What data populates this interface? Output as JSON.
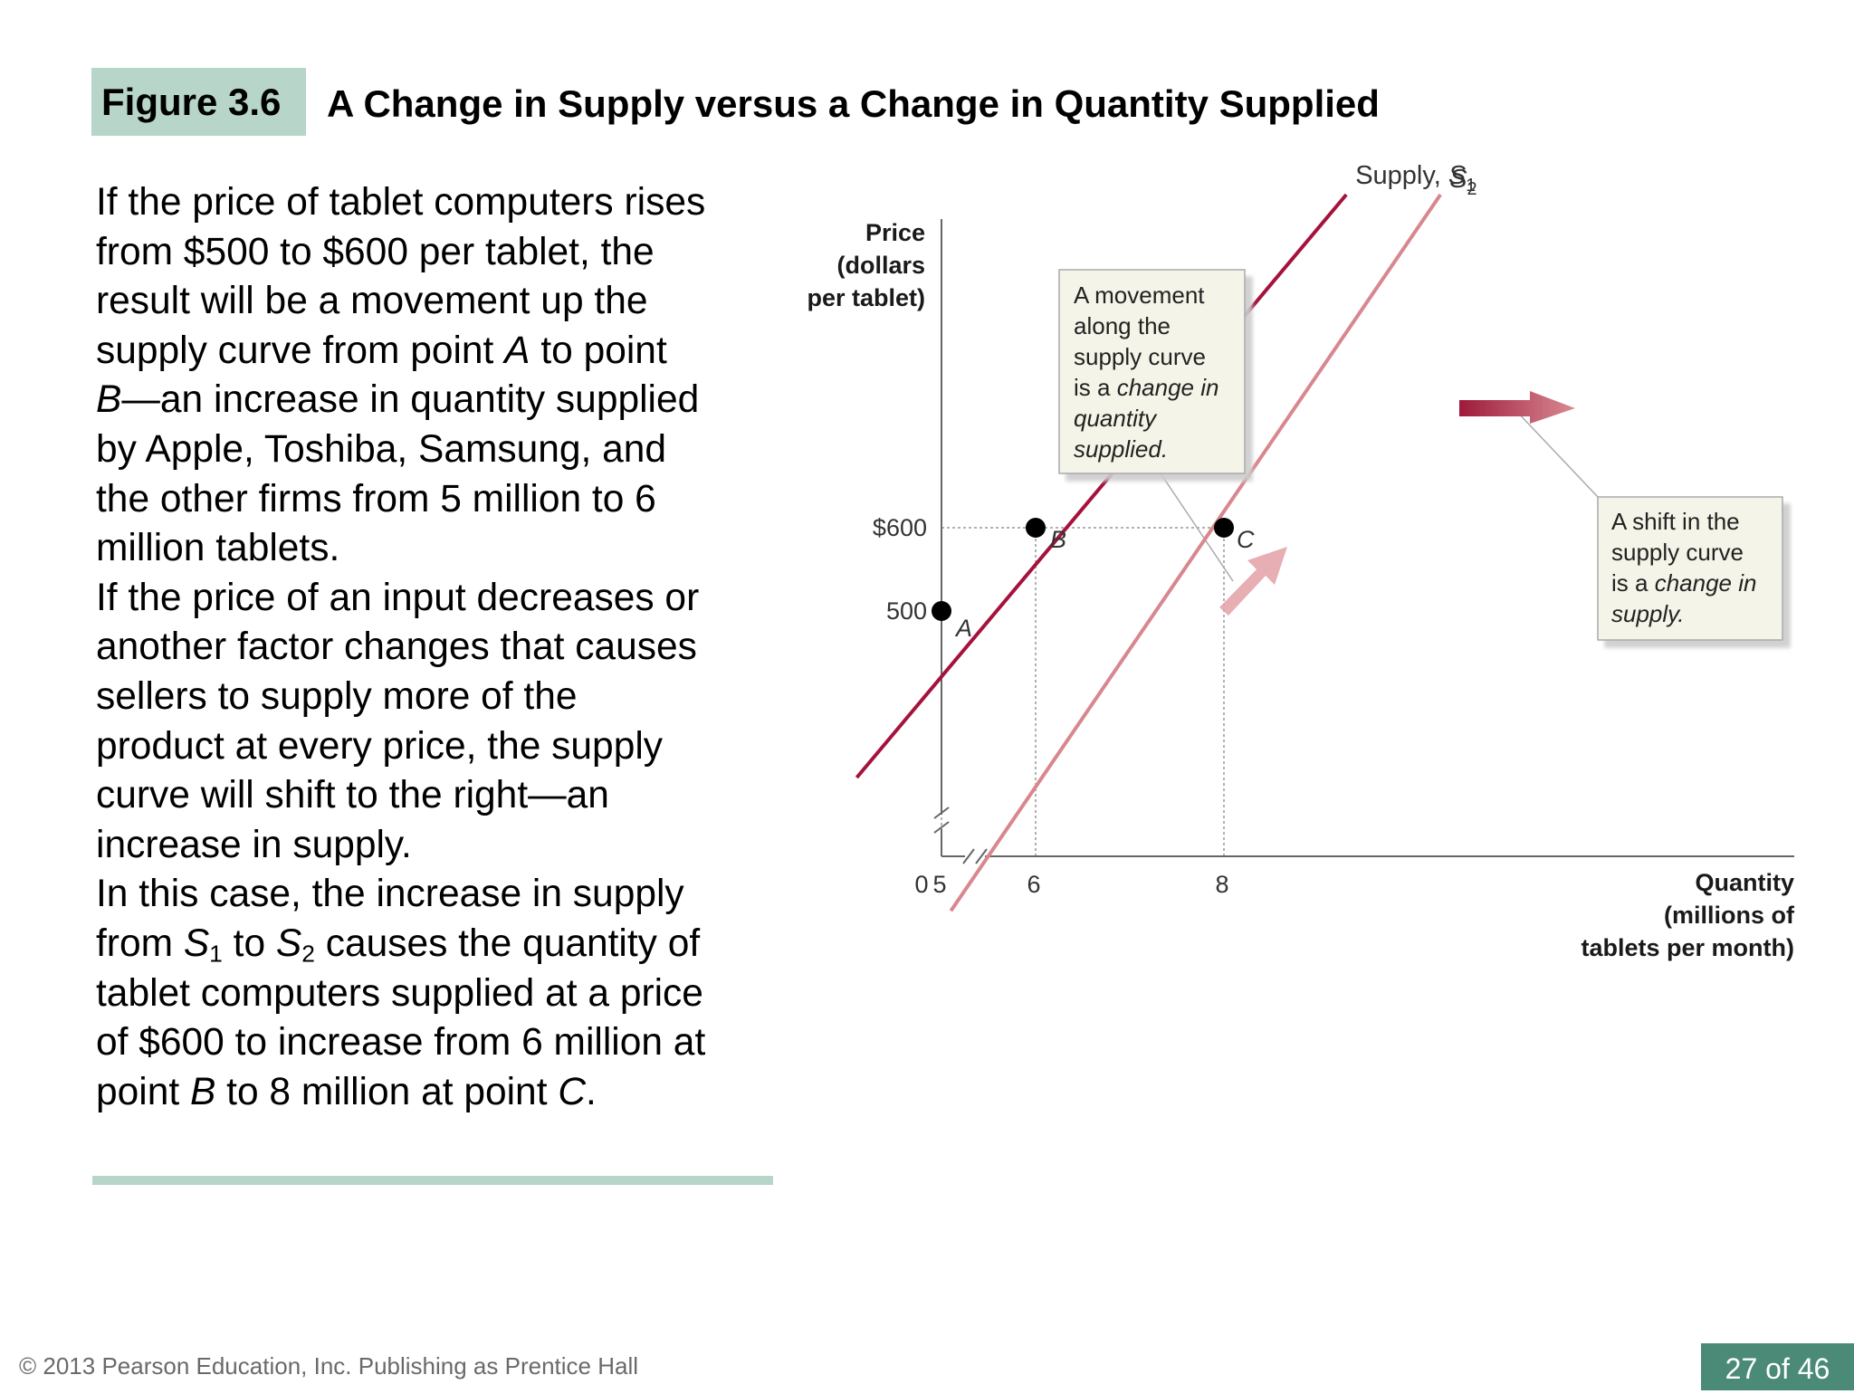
{
  "figure": {
    "label": "Figure 3.6",
    "title": "A Change in Supply versus a Change in Quantity Supplied"
  },
  "body": {
    "lines": [
      "If the price of tablet computers rises",
      "from $500 to $600 per tablet, the",
      "result will be a movement up the",
      "supply curve from point <i>A</i> to point",
      "<i>B</i>—an increase in quantity supplied",
      "by Apple, Toshiba, Samsung, and",
      "the other firms from 5 million to 6",
      "million tablets.",
      "If the price of an input decreases or",
      "another factor changes that causes",
      "sellers to supply more of the",
      "product at every price, the supply",
      "curve will shift to the right—an",
      "increase in supply.",
      "In this case, the increase in supply",
      "from <i>S</i><sub>1</sub> to <i>S</i><sub>2</sub> causes the quantity of",
      "tablet computers supplied at a price",
      "of $600 to increase from 6 million at",
      "point <i>B</i> to 8 million at point <i>C</i>."
    ]
  },
  "footer": {
    "copyright": "© 2013 Pearson Education, Inc. Publishing as Prentice Hall",
    "page": "27 of 46"
  },
  "colors": {
    "badge": "#b7d5c8",
    "page_badge": "#4a8a77",
    "s1": "#a5123c",
    "s2": "#d8878f",
    "callout_bg": "#f5f4e8",
    "callout_border": "#aaaaaa"
  },
  "chart_data": {
    "type": "line",
    "title": "",
    "ylabel": [
      "Price",
      "(dollars",
      "per tablet)"
    ],
    "xlabel": [
      "Quantity",
      "(millions of",
      "tablets per month)"
    ],
    "axis_break": true,
    "xlim": [
      0,
      9.6
    ],
    "ylim": [
      0,
      900
    ],
    "x_ticks": [
      0,
      5,
      6,
      8
    ],
    "x_tick_labels": [
      "0",
      "5",
      "6",
      "8"
    ],
    "y_ticks": [
      500,
      600
    ],
    "y_tick_labels": [
      "500",
      "$600"
    ],
    "series": [
      {
        "name": "Supply, S1",
        "label_main": "Supply, ",
        "label_var": "S",
        "label_sub": "1",
        "x": [
          4.1,
          9.3
        ],
        "y": [
          300,
          1000
        ]
      },
      {
        "name": "S2",
        "label_main": "",
        "label_var": "S",
        "label_sub": "2",
        "x": [
          5.1,
          10.3
        ],
        "y": [
          140,
          1000
        ]
      }
    ],
    "points": [
      {
        "label": "A",
        "x": 5,
        "y": 500
      },
      {
        "label": "B",
        "x": 6,
        "y": 600
      },
      {
        "label": "C",
        "x": 8,
        "y": 600
      }
    ],
    "annotations": [
      {
        "lines": [
          "A movement",
          "along the",
          "supply curve",
          "is a <tspan font-style=\"italic\">change in</tspan>",
          "<tspan font-style=\"italic\">quantity</tspan>",
          "<tspan font-style=\"italic\">supplied.</tspan>"
        ]
      },
      {
        "lines": [
          "A shift in the",
          "supply curve",
          "is a <tspan font-style=\"italic\">change in</tspan>",
          "<tspan font-style=\"italic\">supply.</tspan>"
        ]
      }
    ]
  }
}
